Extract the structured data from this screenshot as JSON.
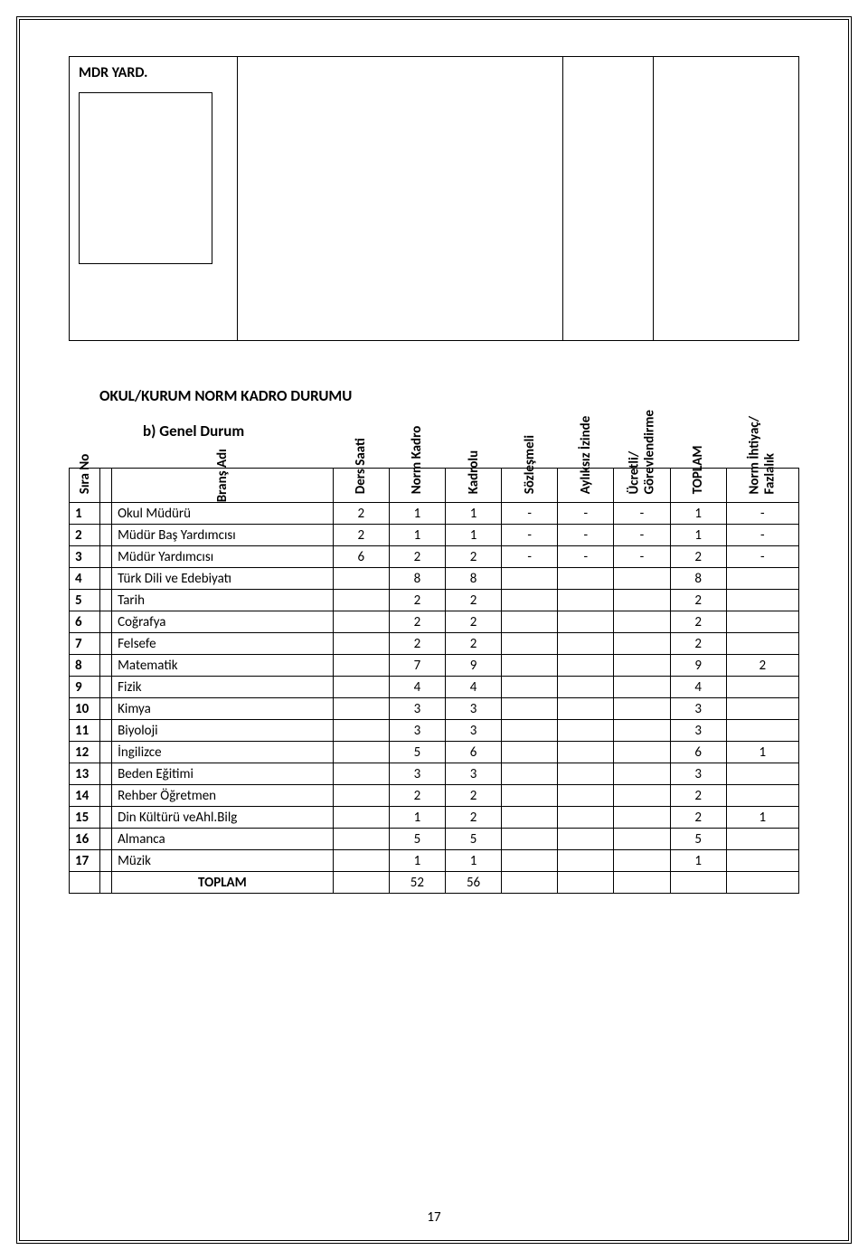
{
  "top": {
    "mdr_yard": "MDR YARD."
  },
  "section": {
    "title": "OKUL/KURUM NORM KADRO DURUMU",
    "subtitle": "b)   Genel Durum"
  },
  "table": {
    "headers": {
      "sira_no": "Sıra No",
      "brans_adi": "Branş Adı",
      "ders_saati": "Ders Saati",
      "norm_kadro": "Norm Kadro",
      "kadrolu": "Kadrolu",
      "sozlesmeli": "Sözleşmeli",
      "ayliksiz_izinde": "Aylıksız İzinde",
      "ucretli_gorevlendirme": "Ücretli/\nGörevlendirme",
      "toplam": "TOPLAM",
      "norm_ihtiyac_fazlalik": "Norm İhtiyaç/\nFazlalık"
    },
    "rows": [
      {
        "no": "1",
        "brans": "Okul Müdürü",
        "ders": "2",
        "norm": "1",
        "kadrolu": "1",
        "soz": "-",
        "ayliksiz": "-",
        "ucretli": "-",
        "toplam": "1",
        "fazla": "-"
      },
      {
        "no": "2",
        "brans": "Müdür  Baş Yardımcısı",
        "ders": "2",
        "norm": "1",
        "kadrolu": "1",
        "soz": "-",
        "ayliksiz": "-",
        "ucretli": "-",
        "toplam": "1",
        "fazla": "-"
      },
      {
        "no": "3",
        "brans": "Müdür  Yardımcısı",
        "ders": "6",
        "norm": "2",
        "kadrolu": "2",
        "soz": "-",
        "ayliksiz": "-",
        "ucretli": "-",
        "toplam": "2",
        "fazla": "-"
      },
      {
        "no": "4",
        "brans": "Türk Dili ve Edebiyatı",
        "ders": "",
        "norm": "8",
        "kadrolu": "8",
        "soz": "",
        "ayliksiz": "",
        "ucretli": "",
        "toplam": "8",
        "fazla": ""
      },
      {
        "no": "5",
        "brans": "Tarih",
        "ders": "",
        "norm": "2",
        "kadrolu": "2",
        "soz": "",
        "ayliksiz": "",
        "ucretli": "",
        "toplam": "2",
        "fazla": ""
      },
      {
        "no": "6",
        "brans": "Coğrafya",
        "ders": "",
        "norm": "2",
        "kadrolu": "2",
        "soz": "",
        "ayliksiz": "",
        "ucretli": "",
        "toplam": "2",
        "fazla": ""
      },
      {
        "no": "7",
        "brans": "Felsefe",
        "ders": "",
        "norm": "2",
        "kadrolu": "2",
        "soz": "",
        "ayliksiz": "",
        "ucretli": "",
        "toplam": "2",
        "fazla": ""
      },
      {
        "no": "8",
        "brans": "Matematik",
        "ders": "",
        "norm": "7",
        "kadrolu": "9",
        "soz": "",
        "ayliksiz": "",
        "ucretli": "",
        "toplam": "9",
        "fazla": "2"
      },
      {
        "no": "9",
        "brans": "Fizik",
        "ders": "",
        "norm": "4",
        "kadrolu": "4",
        "soz": "",
        "ayliksiz": "",
        "ucretli": "",
        "toplam": "4",
        "fazla": ""
      },
      {
        "no": "10",
        "brans": "Kimya",
        "ders": "",
        "norm": "3",
        "kadrolu": "3",
        "soz": "",
        "ayliksiz": "",
        "ucretli": "",
        "toplam": "3",
        "fazla": ""
      },
      {
        "no": "11",
        "brans": "Biyoloji",
        "ders": "",
        "norm": "3",
        "kadrolu": "3",
        "soz": "",
        "ayliksiz": "",
        "ucretli": "",
        "toplam": "3",
        "fazla": ""
      },
      {
        "no": "12",
        "brans": "İngilizce",
        "ders": "",
        "norm": "5",
        "kadrolu": "6",
        "soz": "",
        "ayliksiz": "",
        "ucretli": "",
        "toplam": "6",
        "fazla": "1"
      },
      {
        "no": "13",
        "brans": "Beden Eğitimi",
        "ders": "",
        "norm": "3",
        "kadrolu": "3",
        "soz": "",
        "ayliksiz": "",
        "ucretli": "",
        "toplam": "3",
        "fazla": ""
      },
      {
        "no": "14",
        "brans": "Rehber Öğretmen",
        "ders": "",
        "norm": "2",
        "kadrolu": "2",
        "soz": "",
        "ayliksiz": "",
        "ucretli": "",
        "toplam": "2",
        "fazla": ""
      },
      {
        "no": "15",
        "brans": "Din Kültürü veAhl.Bilg",
        "ders": "",
        "norm": "1",
        "kadrolu": "2",
        "soz": "",
        "ayliksiz": "",
        "ucretli": "",
        "toplam": "2",
        "fazla": "1"
      },
      {
        "no": "16",
        "brans": "Almanca",
        "ders": "",
        "norm": "5",
        "kadrolu": "5",
        "soz": "",
        "ayliksiz": "",
        "ucretli": "",
        "toplam": "5",
        "fazla": ""
      },
      {
        "no": "17",
        "brans": "Müzik",
        "ders": "",
        "norm": "1",
        "kadrolu": "1",
        "soz": "",
        "ayliksiz": "",
        "ucretli": "",
        "toplam": "1",
        "fazla": ""
      }
    ],
    "total": {
      "label": "TOPLAM",
      "ders": "",
      "norm": "52",
      "kadrolu": "56",
      "soz": "",
      "ayliksiz": "",
      "ucretli": "",
      "toplam": "",
      "fazla": ""
    }
  },
  "page_number": "17"
}
